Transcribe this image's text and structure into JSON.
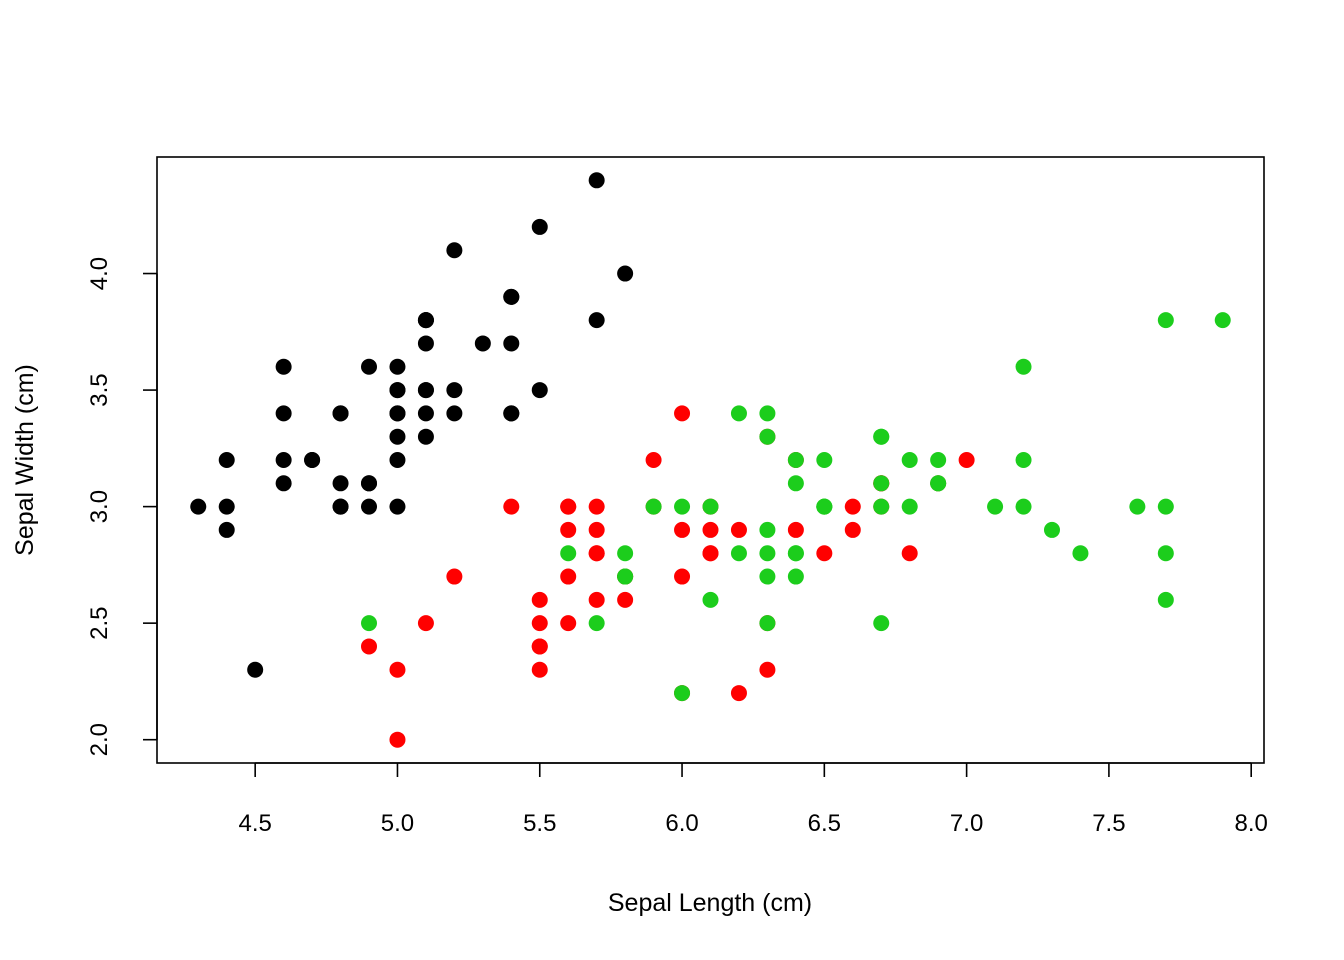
{
  "chart_data": {
    "type": "scatter",
    "title": "",
    "xlabel": "Sepal Length (cm)",
    "ylabel": "Sepal Width (cm)",
    "xlim": [
      4.155,
      8.045
    ],
    "ylim": [
      1.9,
      4.5
    ],
    "x_ticks": [
      "4.5",
      "5.0",
      "5.5",
      "6.0",
      "6.5",
      "7.0",
      "7.5",
      "8.0"
    ],
    "y_ticks": [
      "2.0",
      "2.5",
      "3.0",
      "3.5",
      "4.0"
    ],
    "grid": false,
    "legend": "none",
    "series": [
      {
        "color": "#000000",
        "points": [
          [
            5.1,
            3.5
          ],
          [
            4.9,
            3.0
          ],
          [
            4.7,
            3.2
          ],
          [
            4.6,
            3.1
          ],
          [
            5.0,
            3.6
          ],
          [
            5.4,
            3.9
          ],
          [
            4.6,
            3.4
          ],
          [
            5.0,
            3.4
          ],
          [
            4.4,
            2.9
          ],
          [
            4.9,
            3.1
          ],
          [
            5.4,
            3.7
          ],
          [
            4.8,
            3.4
          ],
          [
            4.8,
            3.0
          ],
          [
            4.3,
            3.0
          ],
          [
            5.8,
            4.0
          ],
          [
            5.7,
            4.4
          ],
          [
            5.4,
            3.9
          ],
          [
            5.1,
            3.5
          ],
          [
            5.7,
            3.8
          ],
          [
            5.1,
            3.8
          ],
          [
            5.4,
            3.4
          ],
          [
            5.1,
            3.7
          ],
          [
            4.6,
            3.6
          ],
          [
            5.1,
            3.3
          ],
          [
            4.8,
            3.4
          ],
          [
            5.0,
            3.0
          ],
          [
            5.0,
            3.4
          ],
          [
            5.2,
            3.5
          ],
          [
            5.2,
            3.4
          ],
          [
            4.7,
            3.2
          ],
          [
            4.8,
            3.1
          ],
          [
            5.4,
            3.4
          ],
          [
            5.2,
            4.1
          ],
          [
            5.5,
            4.2
          ],
          [
            4.9,
            3.1
          ],
          [
            5.0,
            3.2
          ],
          [
            5.5,
            3.5
          ],
          [
            4.9,
            3.6
          ],
          [
            4.4,
            3.0
          ],
          [
            5.1,
            3.4
          ],
          [
            5.0,
            3.5
          ],
          [
            4.5,
            2.3
          ],
          [
            4.4,
            3.2
          ],
          [
            5.0,
            3.5
          ],
          [
            5.1,
            3.8
          ],
          [
            4.8,
            3.0
          ],
          [
            5.1,
            3.8
          ],
          [
            4.6,
            3.2
          ],
          [
            5.3,
            3.7
          ],
          [
            5.0,
            3.3
          ]
        ]
      },
      {
        "color": "#ff0000",
        "points": [
          [
            7.0,
            3.2
          ],
          [
            6.4,
            3.2
          ],
          [
            6.9,
            3.1
          ],
          [
            5.5,
            2.3
          ],
          [
            6.5,
            2.8
          ],
          [
            5.7,
            2.8
          ],
          [
            6.3,
            3.3
          ],
          [
            4.9,
            2.4
          ],
          [
            6.6,
            2.9
          ],
          [
            5.2,
            2.7
          ],
          [
            5.0,
            2.0
          ],
          [
            5.9,
            3.0
          ],
          [
            6.0,
            2.2
          ],
          [
            6.1,
            2.9
          ],
          [
            5.6,
            2.9
          ],
          [
            6.7,
            3.1
          ],
          [
            5.6,
            3.0
          ],
          [
            5.8,
            2.7
          ],
          [
            6.2,
            2.2
          ],
          [
            5.6,
            2.5
          ],
          [
            5.9,
            3.2
          ],
          [
            6.1,
            2.8
          ],
          [
            6.3,
            2.5
          ],
          [
            6.1,
            2.8
          ],
          [
            6.4,
            2.9
          ],
          [
            6.6,
            3.0
          ],
          [
            6.8,
            2.8
          ],
          [
            6.7,
            3.0
          ],
          [
            6.0,
            2.9
          ],
          [
            5.7,
            2.6
          ],
          [
            5.5,
            2.4
          ],
          [
            5.5,
            2.4
          ],
          [
            5.8,
            2.7
          ],
          [
            6.0,
            2.7
          ],
          [
            5.4,
            3.0
          ],
          [
            6.0,
            3.4
          ],
          [
            6.7,
            3.1
          ],
          [
            6.3,
            2.3
          ],
          [
            5.6,
            3.0
          ],
          [
            5.5,
            2.5
          ],
          [
            5.5,
            2.6
          ],
          [
            6.1,
            3.0
          ],
          [
            5.8,
            2.6
          ],
          [
            5.0,
            2.3
          ],
          [
            5.6,
            2.7
          ],
          [
            5.7,
            3.0
          ],
          [
            5.7,
            2.9
          ],
          [
            6.2,
            2.9
          ],
          [
            5.1,
            2.5
          ],
          [
            5.7,
            2.8
          ]
        ]
      },
      {
        "color": "#1ccd1c",
        "points": [
          [
            6.3,
            3.3
          ],
          [
            5.8,
            2.7
          ],
          [
            7.1,
            3.0
          ],
          [
            6.3,
            2.9
          ],
          [
            6.5,
            3.0
          ],
          [
            7.6,
            3.0
          ],
          [
            4.9,
            2.5
          ],
          [
            7.3,
            2.9
          ],
          [
            6.7,
            2.5
          ],
          [
            7.2,
            3.6
          ],
          [
            6.5,
            3.2
          ],
          [
            6.4,
            2.7
          ],
          [
            6.8,
            3.0
          ],
          [
            5.7,
            2.5
          ],
          [
            5.8,
            2.8
          ],
          [
            6.4,
            3.2
          ],
          [
            6.5,
            3.0
          ],
          [
            7.7,
            3.8
          ],
          [
            7.7,
            2.6
          ],
          [
            6.0,
            2.2
          ],
          [
            6.9,
            3.2
          ],
          [
            5.6,
            2.8
          ],
          [
            7.7,
            2.8
          ],
          [
            6.3,
            2.7
          ],
          [
            6.7,
            3.3
          ],
          [
            7.2,
            3.2
          ],
          [
            6.2,
            2.8
          ],
          [
            6.1,
            3.0
          ],
          [
            6.4,
            2.8
          ],
          [
            7.2,
            3.0
          ],
          [
            7.4,
            2.8
          ],
          [
            7.9,
            3.8
          ],
          [
            6.4,
            2.8
          ],
          [
            6.3,
            2.8
          ],
          [
            6.1,
            2.6
          ],
          [
            7.7,
            3.0
          ],
          [
            6.3,
            3.4
          ],
          [
            6.4,
            3.1
          ],
          [
            6.0,
            3.0
          ],
          [
            6.9,
            3.1
          ],
          [
            6.7,
            3.1
          ],
          [
            6.9,
            3.1
          ],
          [
            5.8,
            2.7
          ],
          [
            6.8,
            3.2
          ],
          [
            6.7,
            3.3
          ],
          [
            6.7,
            3.0
          ],
          [
            6.3,
            2.5
          ],
          [
            6.5,
            3.0
          ],
          [
            6.2,
            3.4
          ],
          [
            5.9,
            3.0
          ]
        ]
      }
    ]
  }
}
